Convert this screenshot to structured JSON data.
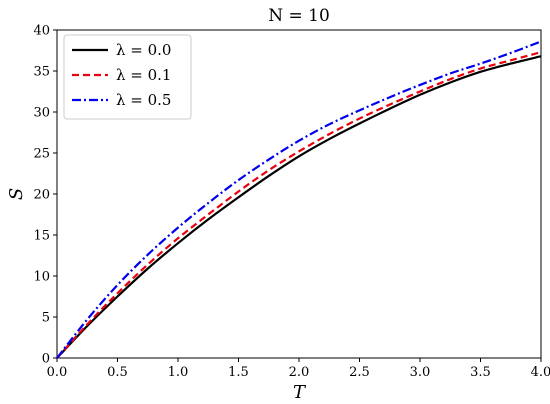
{
  "chart_data": {
    "type": "line",
    "title": "N = 10",
    "xlabel": "T",
    "ylabel": "S",
    "xlim": [
      0.0,
      4.0
    ],
    "ylim": [
      0,
      40
    ],
    "x_ticks": [
      "0.0",
      "0.5",
      "1.0",
      "1.5",
      "2.0",
      "2.5",
      "3.0",
      "3.5",
      "4.0"
    ],
    "y_ticks": [
      "0",
      "5",
      "10",
      "15",
      "20",
      "25",
      "30",
      "35",
      "40"
    ],
    "grid": false,
    "legend_position": "top-left",
    "x": [
      0.0,
      0.25,
      0.5,
      0.75,
      1.0,
      1.25,
      1.5,
      1.75,
      2.0,
      2.25,
      2.5,
      2.75,
      3.0,
      3.25,
      3.5,
      3.75,
      4.0
    ],
    "series": [
      {
        "name": "λ = 0.0",
        "color": "#000000",
        "dash": "solid",
        "values": [
          0.0,
          3.9,
          7.5,
          10.9,
          14.0,
          16.9,
          19.6,
          22.2,
          24.6,
          26.7,
          28.6,
          30.4,
          32.1,
          33.6,
          34.9,
          35.9,
          36.8
        ]
      },
      {
        "name": "λ = 0.1",
        "color": "#e8000b",
        "dash": "dashed",
        "values": [
          0.0,
          4.1,
          7.9,
          11.4,
          14.6,
          17.5,
          20.3,
          22.9,
          25.2,
          27.3,
          29.2,
          30.9,
          32.5,
          34.0,
          35.3,
          36.3,
          37.3
        ]
      },
      {
        "name": "λ = 0.5",
        "color": "#0000ee",
        "dash": "dashdot",
        "values": [
          0.0,
          4.7,
          8.9,
          12.6,
          15.9,
          18.9,
          21.7,
          24.2,
          26.5,
          28.5,
          30.2,
          31.8,
          33.3,
          34.7,
          35.9,
          37.2,
          38.6
        ]
      }
    ]
  }
}
